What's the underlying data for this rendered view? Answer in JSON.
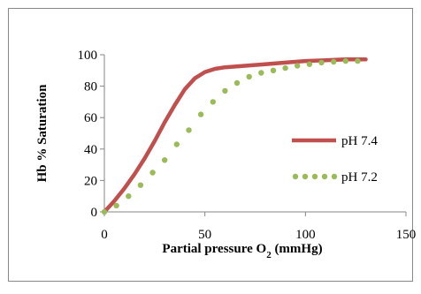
{
  "chart_data": {
    "type": "line",
    "title": "",
    "xlabel": "Partial pressure O",
    "xlabel_subscript": "2",
    "xlabel_unit": " (mmHg)",
    "ylabel": "Hb % Saturation",
    "xlim": [
      0,
      150
    ],
    "ylim": [
      0,
      100
    ],
    "xticks": [
      0,
      50,
      100,
      150
    ],
    "yticks": [
      0,
      20,
      40,
      60,
      80,
      100
    ],
    "grid": false,
    "legend_position": "right",
    "series": [
      {
        "name": "pH 7.4",
        "color": "#C0504D",
        "style": "solid",
        "x": [
          0,
          5,
          10,
          15,
          20,
          25,
          30,
          35,
          40,
          45,
          50,
          55,
          60,
          70,
          80,
          90,
          100,
          110,
          120,
          130
        ],
        "y": [
          0,
          7,
          15,
          24,
          34,
          45,
          57,
          68,
          78,
          85,
          89,
          91,
          92,
          93,
          94,
          95,
          96,
          96.5,
          97,
          97
        ]
      },
      {
        "name": "pH 7.2",
        "color": "#9BBB59",
        "style": "dotted",
        "x": [
          0,
          6,
          12,
          18,
          24,
          30,
          36,
          42,
          48,
          54,
          60,
          66,
          72,
          78,
          84,
          90,
          96,
          102,
          108,
          114,
          120,
          126
        ],
        "y": [
          0,
          4,
          10,
          17,
          25,
          33,
          43,
          52,
          62,
          70,
          77,
          82,
          86,
          88.5,
          90,
          91.5,
          93,
          94,
          95,
          95.5,
          96,
          96
        ]
      }
    ]
  }
}
